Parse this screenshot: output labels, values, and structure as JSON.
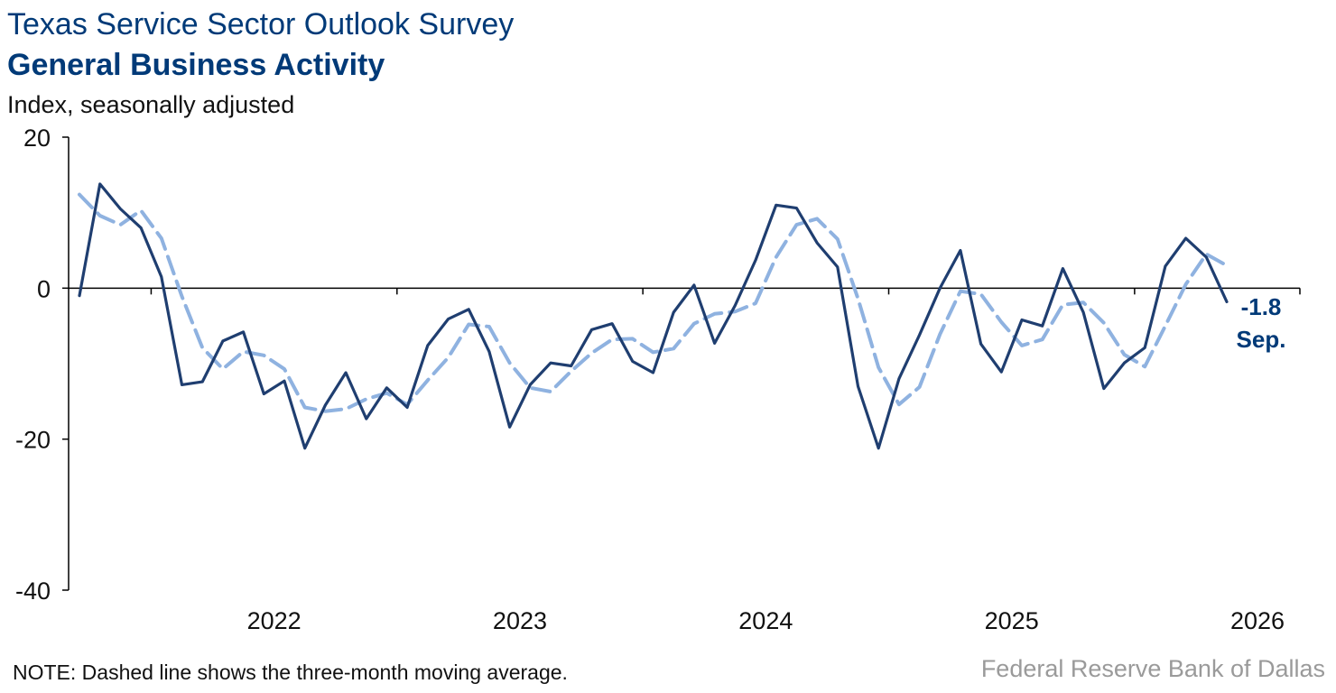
{
  "header": {
    "title": "Texas Service Sector Outlook Survey",
    "subtitle": "General Business Activity",
    "unit_label": "Index, seasonally adjusted"
  },
  "footer": {
    "note": "NOTE: Dashed line shows the three-month moving average.",
    "source": "Federal Reserve Bank of Dallas"
  },
  "chart_data": {
    "type": "line",
    "title": "General Business Activity",
    "ylabel": "Index, seasonally adjusted",
    "ylim": [
      -40,
      20
    ],
    "yticks": [
      "20",
      "0",
      "-20",
      "-40"
    ],
    "x_start": "2021-09",
    "x_end": "2026-09",
    "xtick_labels": [
      "2022",
      "2023",
      "2024",
      "2025",
      "2026"
    ],
    "zero_line": true,
    "grid": false,
    "colors": {
      "monthly": "#1f3e70",
      "moving_average": "#8fb2e0",
      "callout": "#003a78"
    },
    "series": [
      {
        "name": "Monthly index",
        "style": "solid",
        "values": [
          -1,
          13.8,
          10.5,
          8,
          1.5,
          -12.8,
          -12.4,
          -7,
          -5.8,
          -14,
          -12.3,
          -21.2,
          -15.5,
          -11.2,
          -17.3,
          -13.2,
          -15.8,
          -7.6,
          -4.1,
          -2.8,
          -8.4,
          -18.4,
          -12.8,
          -9.9,
          -10.3,
          -5.5,
          -4.7,
          -9.7,
          -11.2,
          -3.2,
          0.4,
          -7.3,
          -2.3,
          3.7,
          11,
          10.6,
          6,
          2.8,
          -13,
          -21.2,
          -12,
          -6.2,
          0,
          5,
          -7.4,
          -11.1,
          -4.2,
          -5,
          2.6,
          -3.2,
          -13.3,
          -9.9,
          -7.9,
          2.9,
          6.6,
          4.1,
          -1.8
        ]
      },
      {
        "name": "Three-month moving average",
        "style": "dashed",
        "values": [
          12.4,
          9.6,
          8.4,
          10.3,
          6.6,
          -1.1,
          -7.9,
          -10.7,
          -8.4,
          -8.9,
          -10.7,
          -15.8,
          -16.3,
          -16,
          -14.7,
          -13.9,
          -15.4,
          -12.2,
          -9.2,
          -4.8,
          -5.1,
          -9.9,
          -13.2,
          -13.7,
          -11,
          -8.6,
          -6.8,
          -6.7,
          -8.5,
          -8,
          -4.7,
          -3.4,
          -3.1,
          -2,
          4.1,
          8.4,
          9.2,
          6.5,
          -1.4,
          -10.5,
          -15.4,
          -13.1,
          -6.1,
          -0.4,
          -0.8,
          -4.5,
          -7.6,
          -6.8,
          -2.2,
          -1.9,
          -4.6,
          -8.8,
          -10.4,
          -5,
          0.5,
          4.5,
          3
        ]
      }
    ],
    "last_value_callout": {
      "value": "-1.8",
      "month": "Sep."
    }
  }
}
